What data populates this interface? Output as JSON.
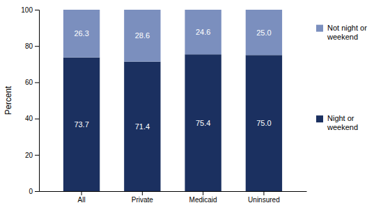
{
  "chart_data": {
    "type": "bar",
    "stacked": true,
    "data_labels": true,
    "grid": false,
    "legend": "right",
    "ylabel": "Percent",
    "categories": [
      "All",
      "Private",
      "Medicaid",
      "Uninsured"
    ],
    "series": [
      {
        "name": "Night or\nweekend",
        "color": "#1b3060",
        "values": [
          73.7,
          71.4,
          75.4,
          75.0
        ],
        "value_labels": [
          "73.7",
          "71.4",
          "75.4",
          "75.0"
        ]
      },
      {
        "name": "Not night or\nweekend",
        "color": "#7b8fbe",
        "values": [
          26.3,
          28.6,
          24.6,
          25.0
        ],
        "value_labels": [
          "26.3",
          "28.6",
          "24.6",
          "25.0"
        ]
      }
    ],
    "ylim": [
      0,
      100
    ],
    "yticks": [
      0,
      20,
      40,
      60,
      80,
      100
    ]
  }
}
